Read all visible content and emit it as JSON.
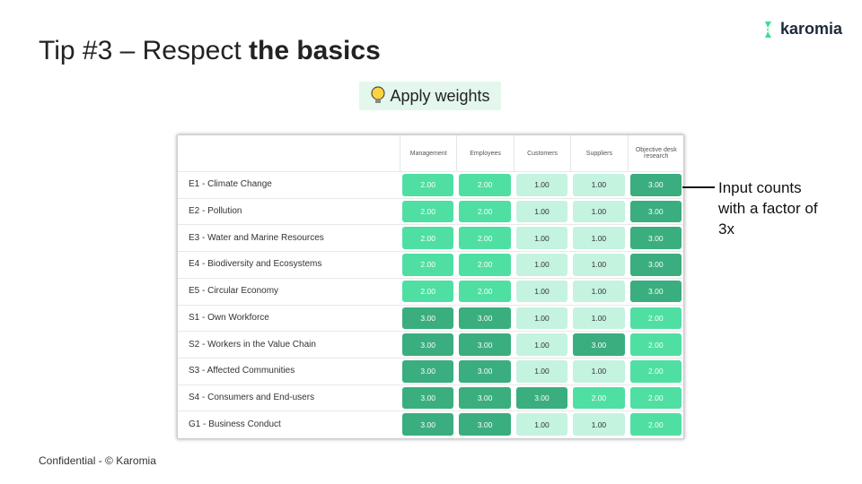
{
  "header": {
    "title_plain": "Tip #3 – Respect ",
    "title_bold": "the basics",
    "logo": "karomia",
    "badge": "Apply weights"
  },
  "table": {
    "columns": [
      "Management",
      "Employees",
      "Customers",
      "Suppliers",
      "Objective desk research"
    ],
    "cell_colors": {
      "1.00": "#c4f3e0",
      "2.00": "#4fdfa3",
      "3.00": "#3aae7e"
    },
    "rows": [
      {
        "label": "E1 - Climate Change",
        "cells": [
          "2.00",
          "2.00",
          "1.00",
          "1.00",
          "3.00"
        ]
      },
      {
        "label": "E2 - Pollution",
        "cells": [
          "2.00",
          "2.00",
          "1.00",
          "1.00",
          "3.00"
        ]
      },
      {
        "label": "E3 - Water and Marine Resources",
        "cells": [
          "2.00",
          "2.00",
          "1.00",
          "1.00",
          "3.00"
        ]
      },
      {
        "label": "E4 - Biodiversity and Ecosystems",
        "cells": [
          "2.00",
          "2.00",
          "1.00",
          "1.00",
          "3.00"
        ]
      },
      {
        "label": "E5 - Circular Economy",
        "cells": [
          "2.00",
          "2.00",
          "1.00",
          "1.00",
          "3.00"
        ]
      },
      {
        "label": "S1 - Own Workforce",
        "cells": [
          "3.00",
          "3.00",
          "1.00",
          "1.00",
          "2.00"
        ]
      },
      {
        "label": "S2 - Workers in the Value Chain",
        "cells": [
          "3.00",
          "3.00",
          "1.00",
          "3.00",
          "2.00"
        ]
      },
      {
        "label": "S3 - Affected Communities",
        "cells": [
          "3.00",
          "3.00",
          "1.00",
          "1.00",
          "2.00"
        ]
      },
      {
        "label": "S4 - Consumers and End-users",
        "cells": [
          "3.00",
          "3.00",
          "3.00",
          "2.00",
          "2.00"
        ]
      },
      {
        "label": "G1 - Business Conduct",
        "cells": [
          "3.00",
          "3.00",
          "1.00",
          "1.00",
          "2.00"
        ]
      }
    ]
  },
  "annotation": "Input counts with a factor of 3x",
  "footer": "Confidential - © Karomia"
}
